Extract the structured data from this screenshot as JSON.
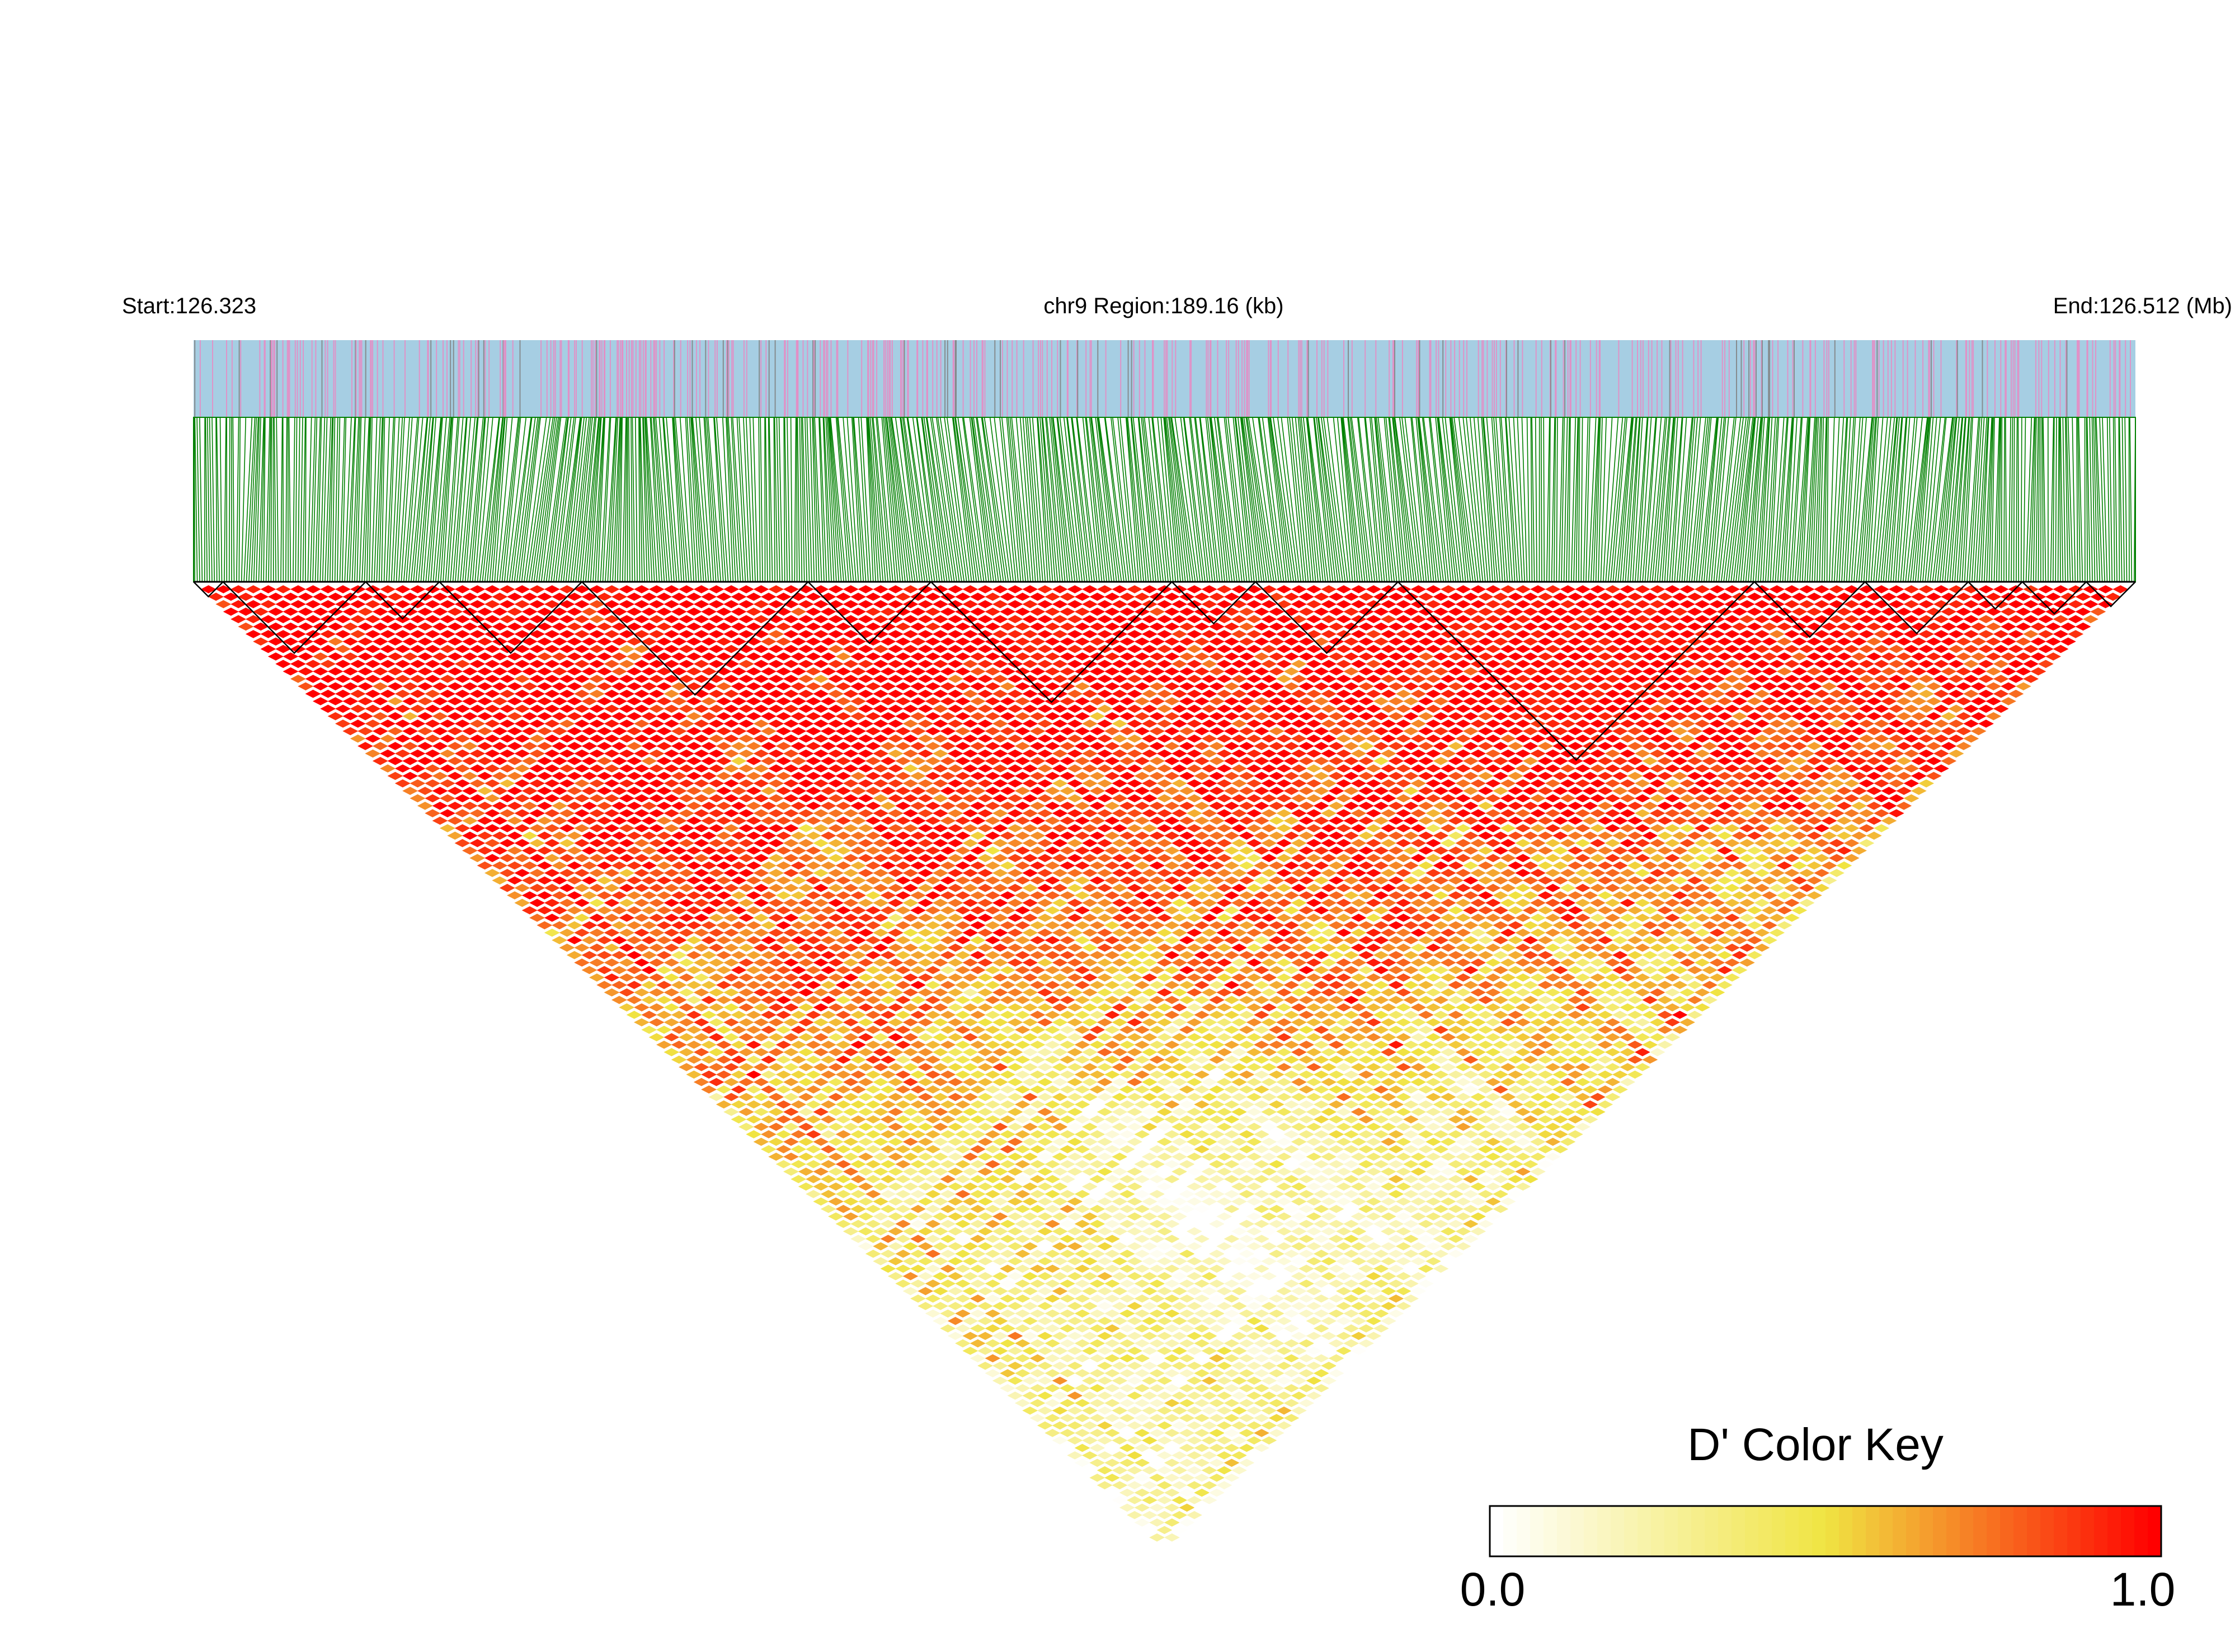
{
  "header": {
    "start_label": "Start:126.323",
    "region_label": "chr9 Region:189.16 (kb)",
    "end_label": "End:126.512 (Mb)"
  },
  "chart_data": {
    "type": "heatmap",
    "title": "",
    "chromosome": "chr9",
    "region_kb": 189.16,
    "x_range_mb": [
      126.323,
      126.512
    ],
    "xlabel": "",
    "ylabel": "",
    "legend": {
      "title": "D' Color Key",
      "min_label": "0.0",
      "max_label": "1.0",
      "range": [
        0.0,
        1.0
      ],
      "placement": "bottom-right",
      "colors": [
        "#ffffff",
        "#f0e442",
        "#ff0000"
      ]
    },
    "snp_track": {
      "base_color": "#a6cee3",
      "highlight_colors": [
        "#e78ac3",
        "#808080"
      ]
    },
    "connector_color": "#008000",
    "ld_blocks_snp_index_ranges": [
      [
        0,
        12
      ],
      [
        12,
        70
      ],
      [
        70,
        100
      ],
      [
        100,
        158
      ],
      [
        158,
        250
      ],
      [
        250,
        300
      ],
      [
        300,
        398
      ],
      [
        398,
        432
      ],
      [
        432,
        490
      ],
      [
        490,
        635
      ],
      [
        635,
        680
      ],
      [
        680,
        722
      ],
      [
        722,
        744
      ],
      [
        744,
        770
      ],
      [
        770,
        790
      ]
    ],
    "snp_count": 790,
    "description_of_pattern": "Pairwise D' mostly high (red) near the diagonal; lighter orange/yellow values with increasing distance; a very pale region in the lower centre."
  },
  "colors": {
    "triangle_edge": "#000000",
    "block_outline": "#000000"
  }
}
